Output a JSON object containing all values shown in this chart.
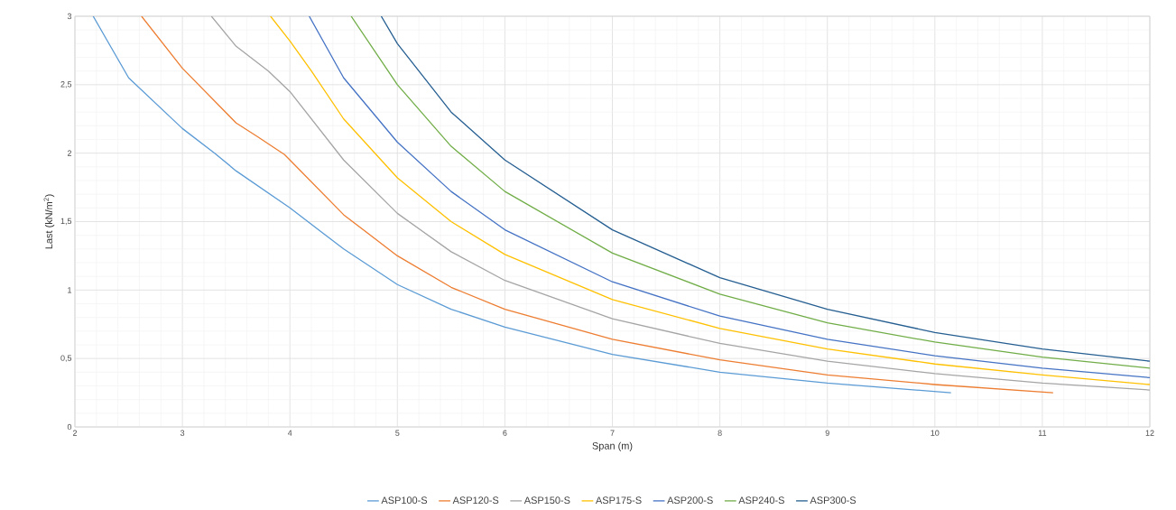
{
  "chart_data": {
    "type": "line",
    "xlabel": "Span (m)",
    "ylabel": "Last (kN/m$^{2}$)",
    "xlim": [
      2,
      12
    ],
    "ylim": [
      0,
      3
    ],
    "xticks": [
      2,
      3,
      4,
      5,
      6,
      7,
      8,
      9,
      10,
      11,
      12
    ],
    "yticks": [
      0,
      {
        "value": 0.5,
        "label": "0,5"
      },
      1,
      {
        "value": 1.5,
        "label": "1,5"
      },
      2,
      {
        "value": 2.5,
        "label": "2,5"
      },
      3
    ],
    "grid": true,
    "legend": "bottom",
    "marker": "none",
    "line_style": "solid",
    "series": [
      {
        "name": "ASP100-S",
        "color": "#5b9bd5",
        "x": [
          2.17,
          2.5,
          3,
          3.3,
          3.5,
          4,
          4.5,
          5,
          5.5,
          6,
          7,
          8,
          9,
          10.15
        ],
        "values": [
          3,
          2.55,
          2.18,
          2.0,
          1.87,
          1.6,
          1.3,
          1.04,
          0.86,
          0.73,
          0.53,
          0.4,
          0.32,
          0.25
        ]
      },
      {
        "name": "ASP120-S",
        "color": "#ed7d31",
        "x": [
          2.62,
          3,
          3.5,
          3.7,
          3.95,
          4,
          4.5,
          5,
          5.5,
          6,
          7,
          8,
          9,
          10,
          11.1
        ],
        "values": [
          3,
          2.62,
          2.22,
          2.12,
          1.99,
          1.95,
          1.55,
          1.25,
          1.02,
          0.86,
          0.64,
          0.49,
          0.38,
          0.31,
          0.25
        ]
      },
      {
        "name": "ASP150-S",
        "color": "#a5a5a5",
        "x": [
          3.27,
          3.5,
          3.8,
          4,
          4.5,
          5,
          5.5,
          6,
          7,
          8,
          9,
          10,
          11,
          12
        ],
        "values": [
          3,
          2.78,
          2.6,
          2.45,
          1.95,
          1.56,
          1.28,
          1.07,
          0.79,
          0.61,
          0.48,
          0.39,
          0.32,
          0.27
        ]
      },
      {
        "name": "ASP175-S",
        "color": "#ffc000",
        "x": [
          3.82,
          4,
          4.2,
          4.5,
          5,
          5.5,
          6,
          7,
          8,
          9,
          10,
          11,
          12
        ],
        "values": [
          3,
          2.82,
          2.6,
          2.25,
          1.82,
          1.5,
          1.26,
          0.93,
          0.72,
          0.57,
          0.46,
          0.38,
          0.31
        ]
      },
      {
        "name": "ASP200-S",
        "color": "#4472c4",
        "x": [
          4.18,
          4.5,
          5,
          5.5,
          6,
          7,
          8,
          9,
          10,
          11,
          12
        ],
        "values": [
          3,
          2.55,
          2.08,
          1.72,
          1.44,
          1.06,
          0.81,
          0.64,
          0.52,
          0.43,
          0.36
        ]
      },
      {
        "name": "ASP240-S",
        "color": "#70ad47",
        "x": [
          4.57,
          5,
          5.5,
          6,
          7,
          8,
          9,
          10,
          11,
          12
        ],
        "values": [
          3,
          2.5,
          2.05,
          1.72,
          1.27,
          0.97,
          0.76,
          0.62,
          0.51,
          0.43
        ]
      },
      {
        "name": "ASP300-S",
        "color": "#255e91",
        "x": [
          4.85,
          5,
          5.5,
          6,
          7,
          8,
          9,
          10,
          11,
          12
        ],
        "values": [
          3,
          2.8,
          2.3,
          1.95,
          1.44,
          1.09,
          0.86,
          0.69,
          0.57,
          0.48
        ]
      }
    ]
  }
}
